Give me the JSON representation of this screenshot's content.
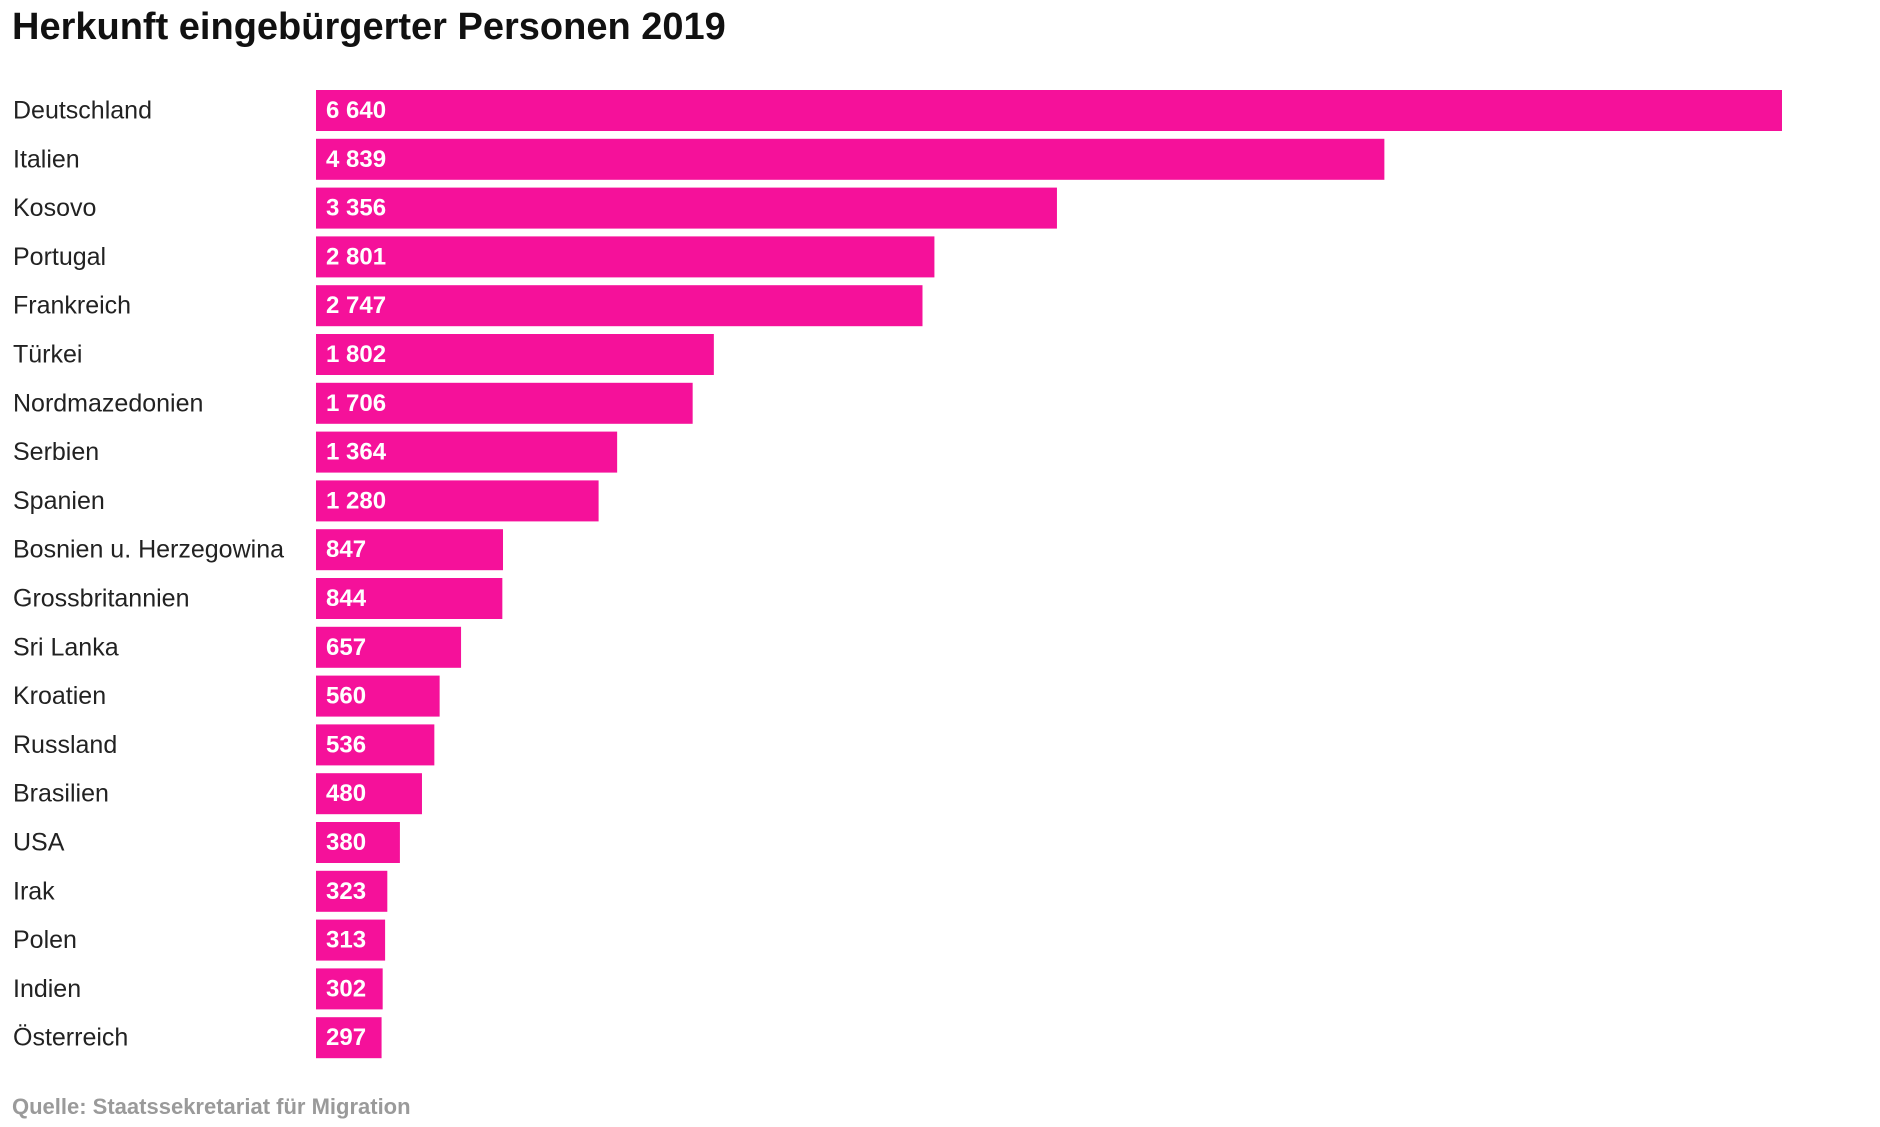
{
  "colors": {
    "bar": "#f5119a",
    "value_text": "#ffffff",
    "category_text": "#222222",
    "source_text": "#9a9a9a"
  },
  "chart_data": {
    "type": "bar",
    "orientation": "horizontal",
    "title": "Herkunft eingebürgerter Personen 2019",
    "source": "Quelle: Staatssekretariat für Migration",
    "xlabel": "",
    "ylabel": "",
    "xlim": [
      0,
      6640
    ],
    "grid": false,
    "legend": "none",
    "categories": [
      "Deutschland",
      "Italien",
      "Kosovo",
      "Portugal",
      "Frankreich",
      "Türkei",
      "Nordmazedonien",
      "Serbien",
      "Spanien",
      "Bosnien u. Herzegowina",
      "Grossbritannien",
      "Sri Lanka",
      "Kroatien",
      "Russland",
      "Brasilien",
      "USA",
      "Irak",
      "Polen",
      "Indien",
      "Österreich"
    ],
    "values": [
      6640,
      4839,
      3356,
      2801,
      2747,
      1802,
      1706,
      1364,
      1280,
      847,
      844,
      657,
      560,
      536,
      480,
      380,
      323,
      313,
      302,
      297
    ],
    "value_labels": [
      "6 640",
      "4 839",
      "3 356",
      "2 801",
      "2 747",
      "1 802",
      "1 706",
      "1 364",
      "1 280",
      "847",
      "844",
      "657",
      "560",
      "536",
      "480",
      "380",
      "323",
      "313",
      "302",
      "297"
    ]
  }
}
